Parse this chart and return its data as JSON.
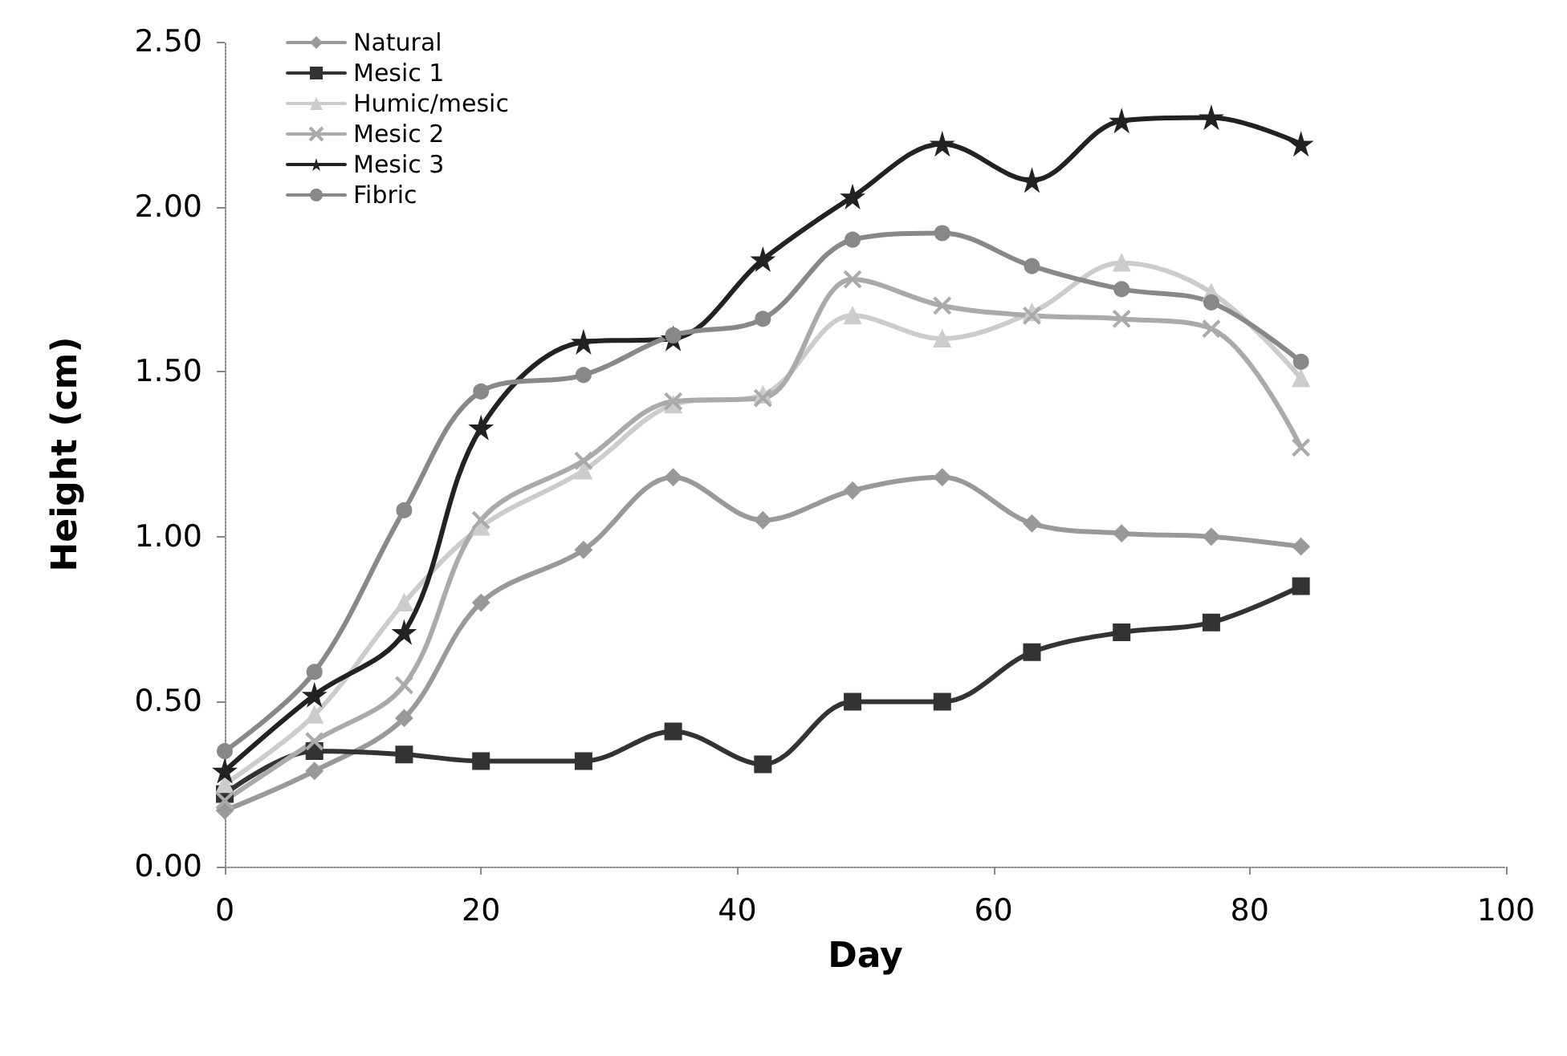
{
  "chart_data": {
    "type": "line",
    "xlabel": "Day",
    "ylabel": "Height (cm)",
    "x": [
      0,
      7,
      14,
      20,
      28,
      35,
      42,
      49,
      56,
      63,
      70,
      77,
      84
    ],
    "xlim": [
      0,
      100
    ],
    "xticks": [
      0,
      20,
      40,
      60,
      80,
      100
    ],
    "ylim": [
      0,
      2.5
    ],
    "yticks": [
      {
        "value": 0,
        "label": "0.00"
      },
      {
        "value": 0.5,
        "label": "0.50"
      },
      {
        "value": 1,
        "label": "1.00"
      },
      {
        "value": 1.5,
        "label": "1.50"
      },
      {
        "value": 2,
        "label": "2.00"
      },
      {
        "value": 2.5,
        "label": "2.50"
      }
    ],
    "grid": false,
    "legend": "top left",
    "line_style": "solid",
    "series": [
      {
        "name": "Natural",
        "color": "#999999",
        "marker": "diamond",
        "values": [
          0.17,
          0.29,
          0.45,
          0.8,
          0.96,
          1.18,
          1.05,
          1.14,
          1.18,
          1.04,
          1.01,
          1.0,
          0.97
        ]
      },
      {
        "name": "Mesic 1",
        "color": "#333333",
        "marker": "square",
        "values": [
          0.22,
          0.35,
          0.34,
          0.32,
          0.32,
          0.41,
          0.31,
          0.5,
          0.5,
          0.65,
          0.71,
          0.74,
          0.85
        ]
      },
      {
        "name": "Humic/mesic",
        "color": "#cccccc",
        "marker": "triangle",
        "values": [
          0.25,
          0.46,
          0.8,
          1.03,
          1.2,
          1.4,
          1.43,
          1.67,
          1.6,
          1.68,
          1.83,
          1.74,
          1.48
        ]
      },
      {
        "name": "Mesic 2",
        "color": "#aaaaaa",
        "marker": "cross",
        "values": [
          0.2,
          0.38,
          0.55,
          1.05,
          1.23,
          1.41,
          1.42,
          1.78,
          1.7,
          1.67,
          1.66,
          1.63,
          1.27
        ]
      },
      {
        "name": "Mesic 3",
        "color": "#222222",
        "marker": "star",
        "values": [
          0.29,
          0.52,
          0.71,
          1.33,
          1.59,
          1.6,
          1.84,
          2.03,
          2.19,
          2.08,
          2.26,
          2.27,
          2.19
        ]
      },
      {
        "name": "Fibric",
        "color": "#888888",
        "marker": "circle",
        "values": [
          0.35,
          0.59,
          1.08,
          1.44,
          1.49,
          1.61,
          1.66,
          1.9,
          1.92,
          1.82,
          1.75,
          1.71,
          1.53
        ]
      }
    ]
  }
}
